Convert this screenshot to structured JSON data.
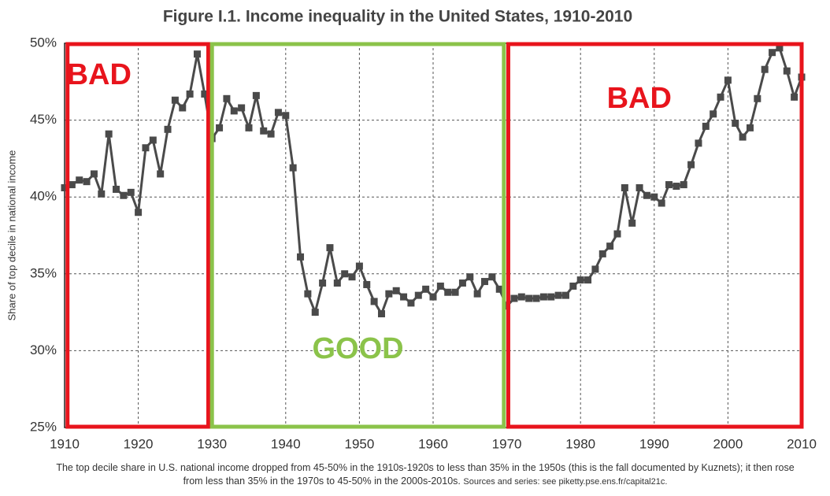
{
  "chart_data": {
    "type": "line",
    "title": "Figure I.1. Income inequality in the United States, 1910-2010",
    "ylabel": "Share of top decile in national income",
    "caption": "The top decile share in U.S. national income dropped from 45-50% in the 1910s-1920s to less than 35% in the 1950s (this is the fall documented by Kuznets); it then rose from less than 35% in the 1970s to 45-50% in the 2000s-2010s.",
    "source": "Sources and series: see piketty.pse.ens.fr/capital21c.",
    "x": [
      1910,
      1911,
      1912,
      1913,
      1914,
      1915,
      1916,
      1917,
      1918,
      1919,
      1920,
      1921,
      1922,
      1923,
      1924,
      1925,
      1926,
      1927,
      1928,
      1929,
      1930,
      1931,
      1932,
      1933,
      1934,
      1935,
      1936,
      1937,
      1938,
      1939,
      1940,
      1941,
      1942,
      1943,
      1944,
      1945,
      1946,
      1947,
      1948,
      1949,
      1950,
      1951,
      1952,
      1953,
      1954,
      1955,
      1956,
      1957,
      1958,
      1959,
      1960,
      1961,
      1962,
      1963,
      1964,
      1965,
      1966,
      1967,
      1968,
      1969,
      1970,
      1971,
      1972,
      1973,
      1974,
      1975,
      1976,
      1977,
      1978,
      1979,
      1980,
      1981,
      1982,
      1983,
      1984,
      1985,
      1986,
      1987,
      1988,
      1989,
      1990,
      1991,
      1992,
      1993,
      1994,
      1995,
      1996,
      1997,
      1998,
      1999,
      2000,
      2001,
      2002,
      2003,
      2004,
      2005,
      2006,
      2007,
      2008,
      2009,
      2010
    ],
    "series": [
      {
        "color": "#4a4a4a",
        "values": [
          40.6,
          40.8,
          41.1,
          41.0,
          41.5,
          40.2,
          44.1,
          40.5,
          40.1,
          40.3,
          39.0,
          43.2,
          43.7,
          41.5,
          44.4,
          46.3,
          45.8,
          46.7,
          49.3,
          46.7,
          43.8,
          44.5,
          46.4,
          45.6,
          45.8,
          44.5,
          46.6,
          44.3,
          44.1,
          45.5,
          45.3,
          41.9,
          36.1,
          33.7,
          32.5,
          34.4,
          36.7,
          34.4,
          35.0,
          34.8,
          35.5,
          34.3,
          33.2,
          32.4,
          33.7,
          33.9,
          33.5,
          33.1,
          33.6,
          34.0,
          33.5,
          34.2,
          33.8,
          33.8,
          34.4,
          34.8,
          33.7,
          34.5,
          34.8,
          34.0,
          32.9,
          33.4,
          33.5,
          33.4,
          33.4,
          33.5,
          33.5,
          33.6,
          33.6,
          34.2,
          34.6,
          34.6,
          35.3,
          36.3,
          36.8,
          37.6,
          40.6,
          38.3,
          40.6,
          40.1,
          40.0,
          39.6,
          40.8,
          40.7,
          40.8,
          42.1,
          43.5,
          44.6,
          45.4,
          46.5,
          47.6,
          44.8,
          43.9,
          44.5,
          46.4,
          48.3,
          49.4,
          49.7,
          48.2,
          46.5,
          47.8
        ]
      }
    ],
    "xlim": [
      1910,
      2010
    ],
    "ylim": [
      25,
      50
    ],
    "xticks": [
      1910,
      1920,
      1930,
      1940,
      1950,
      1960,
      1970,
      1980,
      1990,
      2000,
      2010
    ],
    "yticks": [
      {
        "value": 25,
        "label": "25%"
      },
      {
        "value": 30,
        "label": "30%"
      },
      {
        "value": 35,
        "label": "35%"
      },
      {
        "value": 40,
        "label": "40%"
      },
      {
        "value": 45,
        "label": "45%"
      },
      {
        "value": 50,
        "label": "50%"
      }
    ],
    "grid": true,
    "annotations": [
      {
        "label": "BAD",
        "color": "#e8141c",
        "x": [
          1910.4,
          1929.5
        ]
      },
      {
        "label": "GOOD",
        "color": "#8bc34a",
        "x": [
          1930,
          1969.6
        ]
      },
      {
        "label": "BAD",
        "color": "#e8141c",
        "x": [
          1970.2,
          2010
        ]
      }
    ]
  }
}
